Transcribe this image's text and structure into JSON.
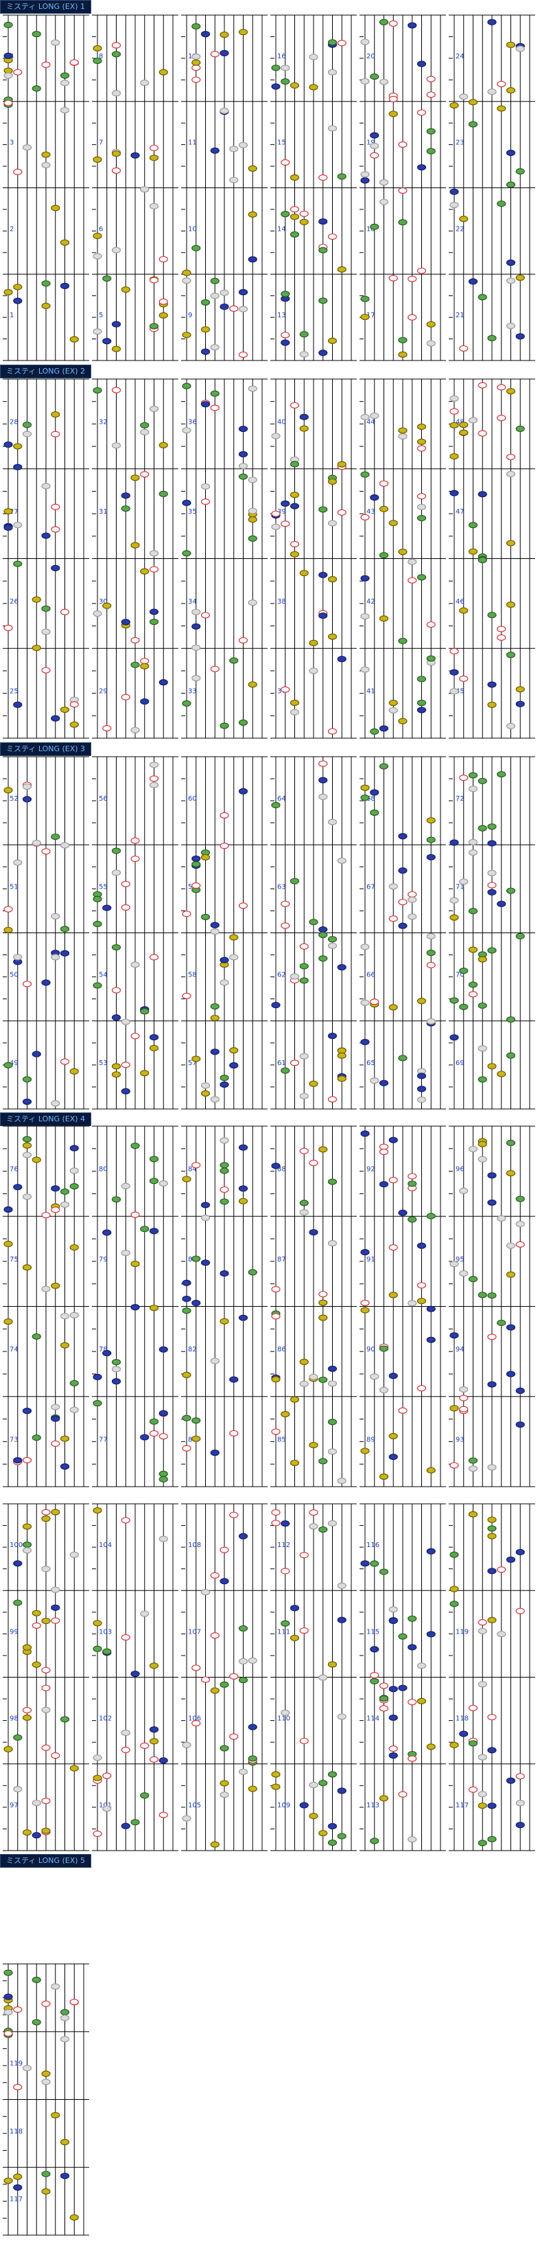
{
  "document": {
    "sections": [
      {
        "title": "ミスティ LONG (EX) 1"
      },
      {
        "title": "ミスティ LONG (EX) 2"
      },
      {
        "title": "ミスティ LONG (EX) 3"
      },
      {
        "title": "ミスティ LONG (EX) 4"
      },
      {
        "title": "ミスティ LONG (EX) 5"
      }
    ],
    "measure_labels": [
      "1",
      "2",
      "3",
      "4",
      "5",
      "6",
      "7",
      "8",
      "9",
      "10",
      "11",
      "12",
      "13",
      "14",
      "15",
      "16",
      "17",
      "18",
      "19",
      "20",
      "21",
      "22",
      "23",
      "24",
      "25",
      "26",
      "27",
      "28",
      "29",
      "30",
      "31",
      "32",
      "33",
      "34",
      "35",
      "36",
      "37",
      "38",
      "39",
      "40",
      "41",
      "42",
      "43",
      "44",
      "45",
      "46",
      "47",
      "48",
      "49",
      "50",
      "51",
      "52",
      "53",
      "54",
      "55",
      "56",
      "57",
      "58",
      "59",
      "60",
      "61",
      "62",
      "63",
      "64",
      "65",
      "66",
      "67",
      "68",
      "69",
      "70",
      "71",
      "72",
      "73",
      "74",
      "75",
      "76",
      "77",
      "78",
      "79",
      "80",
      "81",
      "82",
      "83",
      "84",
      "85",
      "86",
      "87",
      "88",
      "89",
      "90",
      "91",
      "92",
      "93",
      "94",
      "95",
      "96",
      "97",
      "98",
      "99",
      "100",
      "101",
      "102",
      "103",
      "104",
      "105",
      "106",
      "107",
      "108",
      "109",
      "110",
      "111",
      "112",
      "113",
      "114",
      "115",
      "116",
      "117",
      "118",
      "119"
    ]
  },
  "colors": {
    "line": "#000000",
    "note_yellow": "#c9b41a",
    "note_green": "#5aa84d",
    "note_blue": "#2a3aa6",
    "note_red_ring": "#d3333a",
    "note_gray": "#9a9a9a",
    "measure_text": "#1a3dbb",
    "header_bg": "#0a1a3a",
    "header_text": "#6fb7ff"
  }
}
